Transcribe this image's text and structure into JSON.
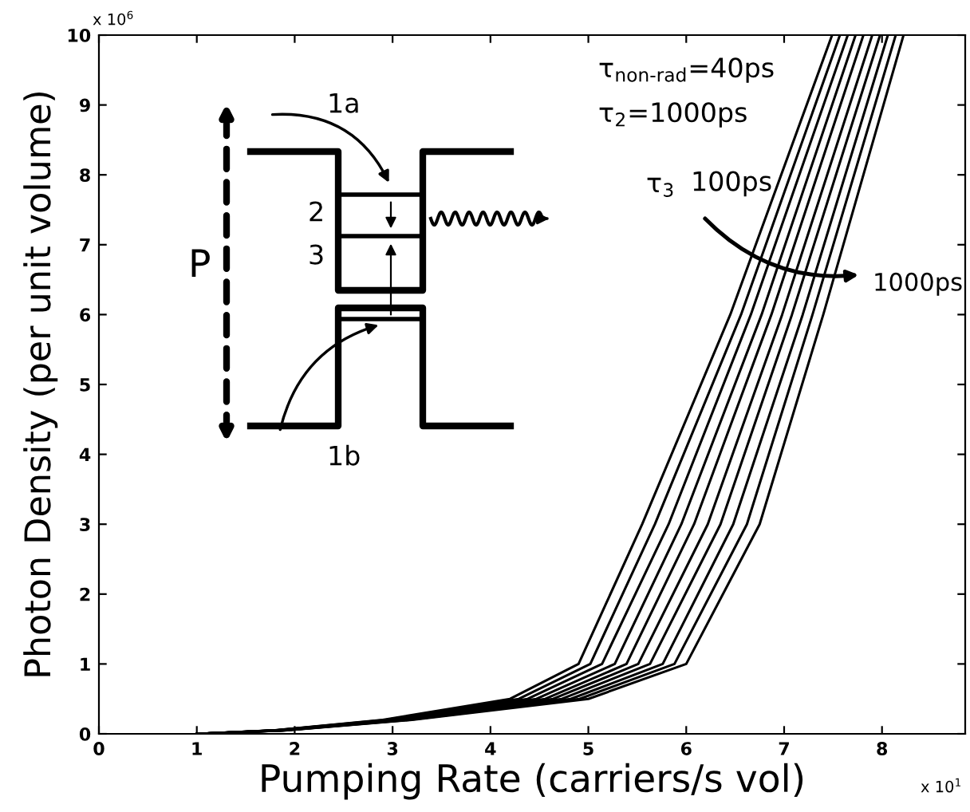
{
  "chart_data": {
    "type": "line",
    "xlabel": "Pumping Rate (carriers/s vol)",
    "ylabel": "Photon Density (per unit volume)",
    "xlim": [
      0,
      8.85
    ],
    "xticks": [
      0,
      1,
      2,
      3,
      4,
      5,
      6,
      7,
      8
    ],
    "ylim": [
      0,
      10
    ],
    "yticks": [
      0,
      1,
      2,
      3,
      4,
      5,
      6,
      7,
      8,
      9,
      10
    ],
    "grid": false,
    "legend": false,
    "marker": "none",
    "line_style": "solid",
    "series": [
      {
        "color": "#000000",
        "x": [
          1,
          1.8,
          2.9,
          4.2,
          4.9,
          5.55,
          6.45,
          7.49
        ],
        "values": [
          0,
          0.05,
          0.2,
          0.5,
          1,
          3,
          6,
          10
        ]
      },
      {
        "color": "#000000",
        "x": [
          1,
          1.81,
          2.93,
          4.29,
          5.02,
          5.68,
          6.56,
          7.57
        ],
        "values": [
          0,
          0.05,
          0.2,
          0.5,
          1,
          3,
          6,
          10
        ]
      },
      {
        "color": "#000000",
        "x": [
          1,
          1.82,
          2.97,
          4.38,
          5.14,
          5.82,
          6.66,
          7.65
        ],
        "values": [
          0,
          0.05,
          0.2,
          0.5,
          1,
          3,
          6,
          10
        ]
      },
      {
        "color": "#000000",
        "x": [
          1,
          1.83,
          3.0,
          4.47,
          5.27,
          5.95,
          6.77,
          7.73
        ],
        "values": [
          0,
          0.05,
          0.2,
          0.5,
          1,
          3,
          6,
          10
        ]
      },
      {
        "color": "#000000",
        "x": [
          1,
          1.84,
          3.03,
          4.56,
          5.39,
          6.08,
          6.87,
          7.81
        ],
        "values": [
          0,
          0.05,
          0.2,
          0.5,
          1,
          3,
          6,
          10
        ]
      },
      {
        "color": "#000000",
        "x": [
          1,
          1.86,
          3.07,
          4.64,
          5.51,
          6.22,
          6.98,
          7.9
        ],
        "values": [
          0,
          0.05,
          0.2,
          0.5,
          1,
          3,
          6,
          10
        ]
      },
      {
        "color": "#000000",
        "x": [
          1,
          1.87,
          3.1,
          4.73,
          5.63,
          6.35,
          7.08,
          7.98
        ],
        "values": [
          0,
          0.05,
          0.2,
          0.5,
          1,
          3,
          6,
          10
        ]
      },
      {
        "color": "#000000",
        "x": [
          1,
          1.88,
          3.13,
          4.82,
          5.76,
          6.48,
          7.19,
          8.06
        ],
        "values": [
          0,
          0.05,
          0.2,
          0.5,
          1,
          3,
          6,
          10
        ]
      },
      {
        "color": "#000000",
        "x": [
          1,
          1.89,
          3.17,
          4.91,
          5.88,
          6.62,
          7.29,
          8.14
        ],
        "values": [
          0,
          0.05,
          0.2,
          0.5,
          1,
          3,
          6,
          10
        ]
      },
      {
        "color": "#000000",
        "x": [
          1,
          1.9,
          3.2,
          5.0,
          6.0,
          6.75,
          7.4,
          8.22
        ],
        "values": [
          0,
          0.05,
          0.2,
          0.5,
          1,
          3,
          6,
          10
        ]
      }
    ],
    "annotations": [
      "x 10$^{6}$",
      "x 10$^{1}$",
      "τ$_{non-rad}$=40ps",
      "τ$_{2}$=1000ps",
      "τ$_{3}$",
      "100ps",
      "1000ps",
      "1a",
      "1b",
      "2",
      "3",
      "P"
    ]
  }
}
